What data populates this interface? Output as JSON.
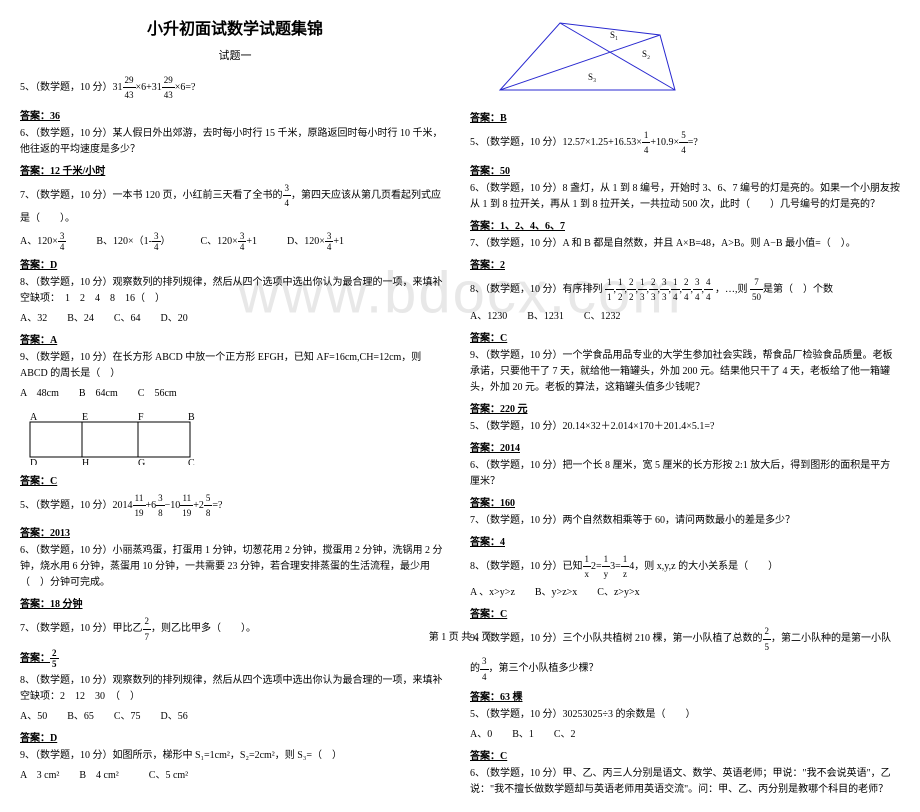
{
  "watermark": "www.bdocx.com",
  "title": "小升初面试数学试题集锦",
  "subtitle": "试题一",
  "footer": "第 1 页 共 4 页",
  "left": {
    "p5": "5、（数学题，10 分）31",
    "p5_frac1_num": "29",
    "p5_frac1_den": "43",
    "p5_mid": "×6+31",
    "p5_frac2_num": "29",
    "p5_frac2_den": "43",
    "p5_end": "×6=?",
    "a5": "答案：36",
    "p6": "6、（数学题，10 分）某人假日外出郊游，去时每小时行 15 千米，原路返回时每小时行 10 千米，他往返的平均速度是多少？",
    "a6": "答案：12 千米/小时",
    "p7": "7、（数学题，10 分）一本书 120 页，小红前三天看了全书的",
    "p7_frac_num": "3",
    "p7_frac_den": "4",
    "p7_end": "，第四天应该从第几页看起列式应是（　　）。",
    "opt_a": "A、120×",
    "opt_a_num": "3",
    "opt_a_den": "4",
    "opt_b": "B、120×（1-",
    "opt_b_num": "3",
    "opt_b_den": "4",
    "opt_b_end": "）",
    "opt_c": "C、120×",
    "opt_c_num": "3",
    "opt_c_den": "4",
    "opt_c_end": "+1",
    "opt_d": "D、120×",
    "opt_d_num": "3",
    "opt_d_den": "4",
    "opt_d_end": "+1",
    "a7": "答案：D",
    "p8": "8、（数学题，10 分）观察数列的排列规律，然后从四个选项中选出你认为最合理的一项，来填补空缺项：　1　2　4　8　16（　）",
    "p8_opts": "A、32　　B、24　　C、64　　D、20",
    "a8": "答案：A",
    "p9": "9、（数学题，10 分）在长方形 ABCD 中放一个正方形 EFGH，已知 AF=16cm,CH=12cm，则 ABCD 的周长是（　）",
    "p9_opts": "A　48cm　　B　64cm　　C　56cm",
    "rect_labels": {
      "A": "A",
      "E": "E",
      "F": "F",
      "B": "B",
      "D": "D",
      "H": "H",
      "G": "G",
      "C": "C"
    },
    "a9": "答案：C",
    "p5b": "5、（数学题，10 分）2014",
    "p5b_f1n": "11",
    "p5b_f1d": "19",
    "p5b_m1": "+6",
    "p5b_f2n": "3",
    "p5b_f2d": "8",
    "p5b_m2": "−10",
    "p5b_f3n": "11",
    "p5b_f3d": "19",
    "p5b_m3": "+2",
    "p5b_f4n": "5",
    "p5b_f4d": "8",
    "p5b_end": "=?",
    "a5b": "答案：2013",
    "p6b": "6、（数学题，10 分）小丽蒸鸡蛋，打蛋用 1 分钟，切葱花用 2 分钟，搅蛋用 2 分钟，洗锅用 2 分钟，烧水用 6 分钟，蒸蛋用 10 分钟，一共需要 23 分钟，若合理安排蒸蛋的生活流程，最少用（　）分钟可完成。",
    "a6b": "答案：18 分钟",
    "p7b": "7、（数学题，10 分）甲比乙",
    "p7b_fn": "2",
    "p7b_fd": "7",
    "p7b_end": "，则乙比甲多（　　）。",
    "a7b_lbl": "答案：",
    "a7b_fn": "2",
    "a7b_fd": "5",
    "p8b": "8、（数学题，10 分）观察数列的排列规律，然后从四个选项中选出你认为最合理的一项，来填补空缺项：2　12　30　（　）",
    "p8b_opts": "A、50　　B、65　　C、75　　D、56",
    "a8b": "答案：D",
    "p9b": "9、（数学题，10 分）如图所示，梯形中 S₁=1cm²，S₂=2cm²，则 S₃=（　）",
    "p9b_opts": "A　3 cm²　　B　4 cm²　　　C、5 cm²"
  },
  "right": {
    "quad_labels": {
      "s1": "S₁",
      "s2": "S₂",
      "s3": "S₃"
    },
    "a_quad": "答案：B",
    "p5": "5、（数学题，10 分）12.57×1.25+16.53×",
    "p5_f1n": "1",
    "p5_f1d": "4",
    "p5_m": "+10.9×",
    "p5_f2n": "5",
    "p5_f2d": "4",
    "p5_end": "=?",
    "a5": "答案：50",
    "p6": "6、（数学题，10 分）8 盏灯，从 1 到 8 编号，开始时 3、6、7 编号的灯是亮的。如果一个小朋友按从 1 到 8 拉开关，再从 1 到 8 拉开关，一共拉动 500 次，此时（　　）几号编号的灯是亮的？",
    "a6": "答案：1、2、4、6、7",
    "p7": "7、（数学题，10 分）A 和 B 都是自然数，并且 A×B=48，A>B。则 A−B 最小值=（　）。",
    "a7": "答案：2",
    "p8": "8、（数学题，10 分）有序排列",
    "p8_fracs": [
      {
        "n": "1",
        "d": "1"
      },
      {
        "n": "1",
        "d": "2"
      },
      {
        "n": "2",
        "d": "2"
      },
      {
        "n": "1",
        "d": "3"
      },
      {
        "n": "2",
        "d": "3"
      },
      {
        "n": "3",
        "d": "3"
      },
      {
        "n": "1",
        "d": "4"
      },
      {
        "n": "2",
        "d": "4"
      },
      {
        "n": "3",
        "d": "4"
      },
      {
        "n": "4",
        "d": "4"
      }
    ],
    "p8_end": "，…,则 ",
    "p8_lastn": "7",
    "p8_lastd": "50",
    "p8_end2": "是第（　）个数",
    "p8_opts": "A、1230　　B、1231　　C、1232",
    "a8": "答案：C",
    "p9": "9、（数学题，10 分）一个学食品用品专业的大学生参加社会实践，帮食品厂检验食品质量。老板承诺，只要他干了 7 天，就给他一箱罐头，外加 200 元。结果他只干了 4 天，老板给了他一箱罐头，外加 20 元。老板的算法，这箱罐头值多少钱呢？",
    "a9": "答案：220 元",
    "p5b": "5、（数学题，10 分）20.14×32＋2.014×170＋201.4×5.1=?",
    "a5b": "答案：2014",
    "p6b": "6、（数学题，10 分）把一个长 8 厘米，宽 5 厘米的长方形按 2:1 放大后，得到图形的面积是平方厘米？",
    "a6b": "答案：160",
    "p7b": "7、（数学题，10 分）两个自然数相乘等于 60，请问两数最小的差是多少？",
    "a7b": "答案：4",
    "p8b": "8、（数学题，10 分）已知",
    "p8b_f1n": "1",
    "p8b_f1d": "x",
    "p8b_m1": "2=",
    "p8b_f2n": "1",
    "p8b_f2d": "y",
    "p8b_m2": "3=",
    "p8b_f3n": "1",
    "p8b_f3d": "z",
    "p8b_end": "4，则 x,y,z 的大小关系是（　　）",
    "p8b_opts": "A 、x>y>z　　B、y>z>x　　C、z>y>x",
    "a8b": "答案：C",
    "p9b": "9、（数学题，10 分）三个小队共植树 210 棵，第一小队植了总数的",
    "p9b_f1n": "2",
    "p9b_f1d": "5",
    "p9b_m": "，第二小队种的是第一小队的",
    "p9b_f2n": "3",
    "p9b_f2d": "4",
    "p9b_end": "，第三个小队植多少棵？",
    "a9b": "答案：63 棵",
    "p5c": "5、（数学题，10 分）30253025÷3 的余数是（　　）",
    "p5c_opts": "A、0　　B、1　　C、2",
    "a5c": "答案：C",
    "p6c": "6、（数学题，10 分）甲、乙、丙三人分别是语文、数学、英语老师；甲说：\"我不会说英语\"，乙说：\"我不擅长做数学题却与英语老师用英语交流\"。问：甲、乙、丙分别是教哪个科目的老师？"
  }
}
